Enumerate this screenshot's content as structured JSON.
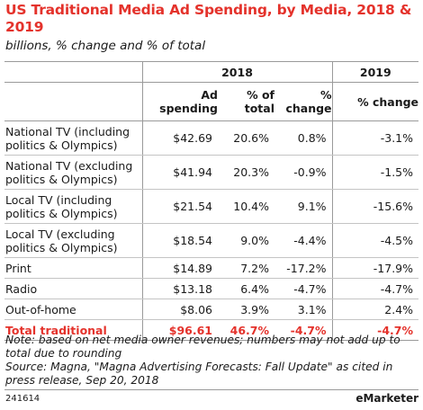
{
  "title": "US Traditional Media Ad Spending, by Media, 2018 & 2019",
  "subtitle": "billions, % change and % of total",
  "chart_data": {
    "type": "table",
    "title": "US Traditional Media Ad Spending, by Media, 2018 & 2019",
    "subtitle": "billions, % change and % of total",
    "year_headers": [
      "2018",
      "2019"
    ],
    "columns": [
      "Ad spending",
      "% of total",
      "% change",
      "% change"
    ],
    "rows": [
      {
        "label": "National TV (including politics & Olympics)",
        "values": [
          "$42.69",
          "20.6%",
          "0.8%",
          "-3.1%"
        ]
      },
      {
        "label": "National TV (excluding politics & Olympics)",
        "values": [
          "$41.94",
          "20.3%",
          "-0.9%",
          "-1.5%"
        ]
      },
      {
        "label": "Local TV (including politics & Olympics)",
        "values": [
          "$21.54",
          "10.4%",
          "9.1%",
          "-15.6%"
        ]
      },
      {
        "label": "Local TV (excluding politics & Olympics)",
        "values": [
          "$18.54",
          "9.0%",
          "-4.4%",
          "-4.5%"
        ]
      },
      {
        "label": "Print",
        "values": [
          "$14.89",
          "7.2%",
          "-17.2%",
          "-17.9%"
        ]
      },
      {
        "label": "Radio",
        "values": [
          "$13.18",
          "6.4%",
          "-4.7%",
          "-4.7%"
        ]
      },
      {
        "label": "Out-of-home",
        "values": [
          "$8.06",
          "3.9%",
          "3.1%",
          "2.4%"
        ]
      }
    ],
    "total": {
      "label": "Total traditional",
      "values": [
        "$96.61",
        "46.7%",
        "-4.7%",
        "-4.7%"
      ]
    }
  },
  "footnote": {
    "note": "Note: based on net media owner revenues; numbers may not add up to total due to rounding",
    "source": "Source: Magna, \"Magna Advertising Forecasts: Fall Update\" as cited in press release, Sep 20, 2018"
  },
  "chart_id": "241614",
  "brand": "eMarketer",
  "colors": {
    "accent": "#e4322b",
    "text": "#1a1a1a",
    "rule": "#9a9a9a"
  }
}
